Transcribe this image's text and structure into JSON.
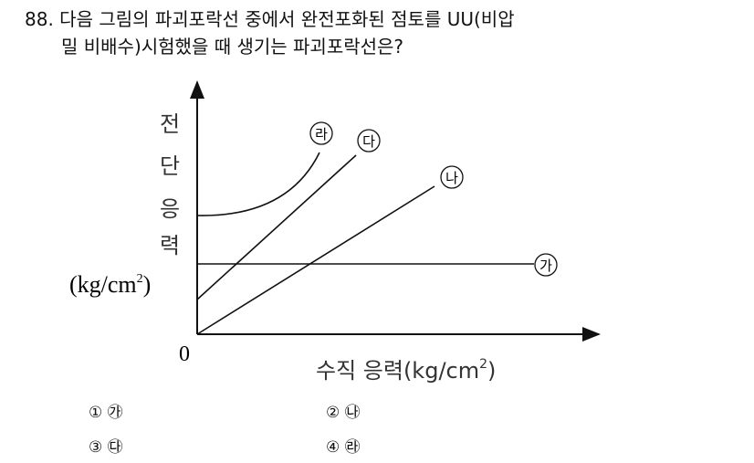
{
  "question": {
    "number": "88.",
    "line1": "다음 그림의 파괴포락선 중에서 완전포화된 점토를 UU(비압",
    "line2": "밀 비배수)시험했을 때 생기는 파괴포락선은?"
  },
  "figure": {
    "y_axis_label": [
      "전",
      "단",
      "응",
      "력"
    ],
    "y_axis_unit": "(kg/cm",
    "x_axis_label": "수직 응력(kg/cm",
    "unit_superscript": "2",
    "unit_close": ")",
    "origin_label": "0",
    "curve_labels": {
      "ga": "가",
      "na": "나",
      "da": "다",
      "ra": "라"
    }
  },
  "options": [
    {
      "num": "①",
      "label": "㉮"
    },
    {
      "num": "②",
      "label": "㉯"
    },
    {
      "num": "③",
      "label": "㉰"
    },
    {
      "num": "④",
      "label": "㉱"
    }
  ]
}
